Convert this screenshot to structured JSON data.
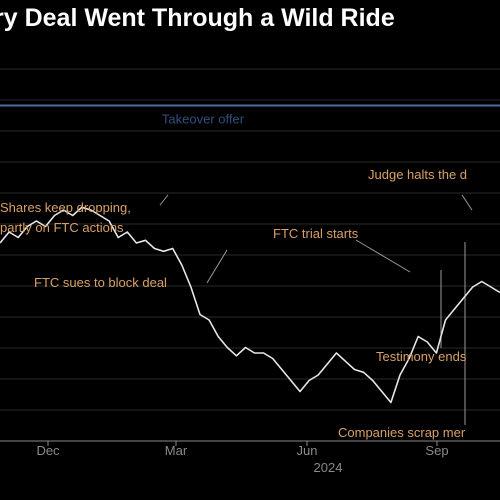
{
  "chart_data": {
    "type": "line",
    "title": "ry Deal Went Through a Wild Ride",
    "xlabel": "",
    "ylabel": "",
    "x_ticks": [
      "Dec",
      "Mar",
      "Jun",
      "Sep"
    ],
    "x_year": "2024",
    "offer": {
      "label": "Takeover offer",
      "value": 101
    },
    "ylim": [
      40,
      112
    ],
    "series": [
      {
        "values": [
          [
            0,
            76
          ],
          [
            2,
            78
          ],
          [
            4,
            77
          ],
          [
            6,
            79
          ],
          [
            8,
            80
          ],
          [
            10,
            79
          ],
          [
            12,
            81
          ],
          [
            14,
            82
          ],
          [
            16,
            81
          ],
          [
            18,
            82.5
          ],
          [
            20,
            82
          ],
          [
            22,
            81
          ],
          [
            24,
            80
          ],
          [
            26,
            77
          ],
          [
            28,
            78
          ],
          [
            30,
            76
          ],
          [
            32,
            76.5
          ],
          [
            34,
            75
          ],
          [
            36,
            74.5
          ],
          [
            38,
            75
          ],
          [
            40,
            72
          ],
          [
            42,
            68
          ],
          [
            44,
            63
          ],
          [
            46,
            62
          ],
          [
            48,
            59
          ],
          [
            50,
            57
          ],
          [
            52,
            55.5
          ],
          [
            54,
            57
          ],
          [
            56,
            56
          ],
          [
            58,
            56
          ],
          [
            60,
            55
          ],
          [
            62,
            53
          ],
          [
            64,
            51
          ],
          [
            66,
            49
          ],
          [
            68,
            51
          ],
          [
            70,
            52
          ],
          [
            72,
            54
          ],
          [
            74,
            56
          ],
          [
            76,
            54.5
          ],
          [
            78,
            53
          ],
          [
            80,
            52.5
          ],
          [
            82,
            51
          ],
          [
            84,
            49
          ],
          [
            86,
            47
          ],
          [
            88,
            52
          ],
          [
            90,
            55
          ],
          [
            92,
            59
          ],
          [
            94,
            58
          ],
          [
            96,
            56
          ],
          [
            98,
            62
          ],
          [
            100,
            64
          ],
          [
            102,
            66
          ],
          [
            104,
            68
          ],
          [
            106,
            69
          ],
          [
            108,
            68
          ],
          [
            110,
            67
          ]
        ]
      }
    ],
    "annotations": [
      "Shares keep dropping,",
      "partly on FTC actions",
      "FTC sues to block deal",
      "FTC trial starts",
      "Testimony ends",
      "Judge halts the d",
      "Companies scrap mer"
    ],
    "grid": true,
    "colors": {
      "background": "#000000",
      "line": "#e6e6e6",
      "offer_line": "#4a6ea0",
      "offer_text": "#2f4f7f",
      "annotation_text": "#d9a066",
      "annotation_line": "#9a9a9a",
      "grid": "#2a2a2a",
      "axis": "#8a8a8a",
      "title": "#ffffff"
    }
  }
}
